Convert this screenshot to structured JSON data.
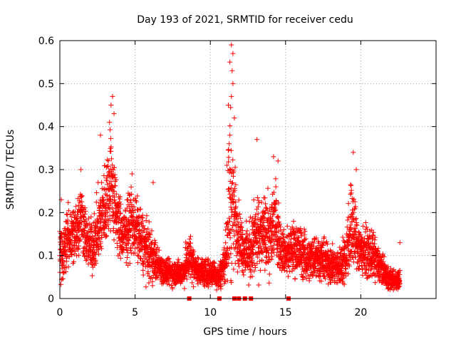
{
  "chart_data": {
    "type": "scatter",
    "title": "Day 193 of 2021, SRMTID for receiver cedu",
    "xlabel": "GPS time / hours",
    "ylabel": "SRMTID / TECUs",
    "xlim": [
      0,
      25
    ],
    "ylim": [
      0,
      0.6
    ],
    "grid": true,
    "marker": "plus",
    "color": "#ff0000",
    "x_ticks": [
      "0",
      "5",
      "10",
      "15",
      "20"
    ],
    "x_tick_values": [
      0,
      5,
      10,
      15,
      20
    ],
    "y_ticks": [
      "0",
      "0.1",
      "0.2",
      "0.3",
      "0.4",
      "0.5",
      "0.6"
    ],
    "y_tick_values": [
      0,
      0.1,
      0.2,
      0.3,
      0.4,
      0.5,
      0.6
    ],
    "event_marks_x": [
      8.6,
      10.6,
      11.6,
      11.9,
      12.3,
      12.7,
      15.2
    ],
    "series": [
      {
        "name": "SRMTID",
        "profile": [
          [
            0.0,
            0.12,
            0.09
          ],
          [
            0.2,
            0.1,
            0.08
          ],
          [
            0.5,
            0.14,
            0.09
          ],
          [
            1.0,
            0.15,
            0.1
          ],
          [
            1.4,
            0.2,
            0.1
          ],
          [
            1.8,
            0.13,
            0.08
          ],
          [
            2.2,
            0.12,
            0.08
          ],
          [
            2.7,
            0.18,
            0.12
          ],
          [
            3.0,
            0.22,
            0.13
          ],
          [
            3.4,
            0.28,
            0.16
          ],
          [
            3.7,
            0.2,
            0.12
          ],
          [
            4.2,
            0.14,
            0.08
          ],
          [
            4.7,
            0.18,
            0.1
          ],
          [
            5.0,
            0.17,
            0.1
          ],
          [
            5.5,
            0.13,
            0.09
          ],
          [
            6.0,
            0.1,
            0.08
          ],
          [
            6.5,
            0.08,
            0.05
          ],
          [
            7.0,
            0.06,
            0.04
          ],
          [
            7.6,
            0.06,
            0.04
          ],
          [
            8.2,
            0.06,
            0.04
          ],
          [
            8.6,
            0.1,
            0.08
          ],
          [
            9.0,
            0.07,
            0.04
          ],
          [
            9.6,
            0.06,
            0.04
          ],
          [
            10.2,
            0.06,
            0.04
          ],
          [
            10.6,
            0.05,
            0.04
          ],
          [
            11.0,
            0.09,
            0.06
          ],
          [
            11.3,
            0.25,
            0.28
          ],
          [
            11.6,
            0.2,
            0.14
          ],
          [
            12.0,
            0.13,
            0.08
          ],
          [
            12.5,
            0.1,
            0.08
          ],
          [
            13.0,
            0.14,
            0.12
          ],
          [
            13.5,
            0.15,
            0.1
          ],
          [
            14.0,
            0.14,
            0.12
          ],
          [
            14.3,
            0.2,
            0.12
          ],
          [
            14.6,
            0.13,
            0.08
          ],
          [
            15.0,
            0.1,
            0.06
          ],
          [
            15.5,
            0.12,
            0.08
          ],
          [
            16.0,
            0.11,
            0.08
          ],
          [
            16.5,
            0.09,
            0.06
          ],
          [
            17.0,
            0.1,
            0.07
          ],
          [
            17.5,
            0.09,
            0.06
          ],
          [
            18.0,
            0.08,
            0.06
          ],
          [
            18.5,
            0.07,
            0.05
          ],
          [
            19.0,
            0.1,
            0.08
          ],
          [
            19.4,
            0.18,
            0.15
          ],
          [
            19.8,
            0.12,
            0.08
          ],
          [
            20.2,
            0.11,
            0.07
          ],
          [
            20.8,
            0.1,
            0.07
          ],
          [
            21.3,
            0.07,
            0.05
          ],
          [
            21.8,
            0.05,
            0.04
          ],
          [
            22.3,
            0.04,
            0.03
          ],
          [
            22.6,
            0.05,
            0.03
          ]
        ],
        "peaks": [
          [
            3.5,
            0.47
          ],
          [
            3.4,
            0.45
          ],
          [
            3.6,
            0.43
          ],
          [
            3.3,
            0.41
          ],
          [
            2.7,
            0.38
          ],
          [
            11.4,
            0.59
          ],
          [
            11.5,
            0.57
          ],
          [
            11.3,
            0.55
          ],
          [
            11.45,
            0.53
          ],
          [
            11.5,
            0.5
          ],
          [
            11.4,
            0.47
          ],
          [
            11.2,
            0.45
          ],
          [
            11.6,
            0.42
          ],
          [
            11.3,
            0.38
          ],
          [
            11.1,
            0.31
          ],
          [
            13.1,
            0.37
          ],
          [
            14.2,
            0.33
          ],
          [
            14.5,
            0.32
          ],
          [
            19.5,
            0.34
          ],
          [
            19.7,
            0.3
          ],
          [
            6.2,
            0.27
          ],
          [
            4.8,
            0.29
          ],
          [
            1.4,
            0.3
          ],
          [
            0.1,
            0.23
          ],
          [
            22.6,
            0.13
          ]
        ]
      }
    ]
  }
}
